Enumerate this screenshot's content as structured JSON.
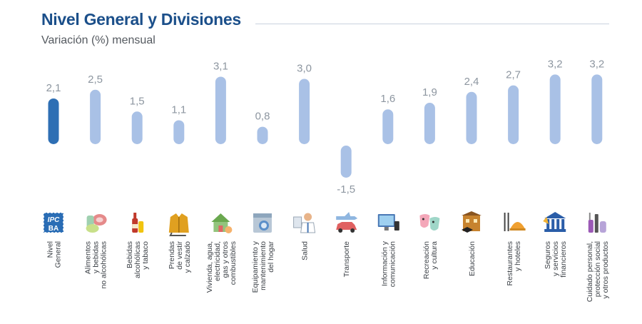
{
  "header": {
    "title": "Nivel General y Divisiones",
    "subtitle": "Variación (%) mensual"
  },
  "colors": {
    "highlight": "#2e6fb4",
    "bar": "#a9c1e6",
    "title": "#1b4f8a"
  },
  "chart_data": {
    "type": "bar",
    "title": "Nivel General y Divisiones",
    "subtitle": "Variación (%) mensual",
    "xlabel": "",
    "ylabel": "",
    "ylim": [
      -2,
      3.5
    ],
    "highlight_index": 0,
    "categories": [
      [
        "Nivel",
        "General"
      ],
      [
        "Alimentos",
        "y bebidas",
        "no alcohólicas"
      ],
      [
        "Bebidas",
        "alcohólicas",
        "y tabaco"
      ],
      [
        "Prendas",
        "de vestir",
        "y calzado"
      ],
      [
        "Vivienda, agua,",
        "electricidad,",
        "gas y otros",
        "combustibles"
      ],
      [
        "Equipamiento y",
        "mantenimiento",
        "del hogar"
      ],
      [
        "Salud"
      ],
      [
        "Transporte"
      ],
      [
        "Información y",
        "comunicación"
      ],
      [
        "Recreación",
        "y cultura"
      ],
      [
        "Educación"
      ],
      [
        "Restaurantes",
        "y hoteles"
      ],
      [
        "Seguros",
        "y servicios",
        "financieros"
      ],
      [
        "Cuidado personal,",
        "protección social",
        "y otros productos"
      ]
    ],
    "values": [
      2.1,
      2.5,
      1.5,
      1.1,
      3.1,
      0.8,
      3.0,
      -1.5,
      1.6,
      1.9,
      2.4,
      2.7,
      3.2,
      3.2
    ],
    "value_labels": [
      "2,1",
      "2,5",
      "1,5",
      "1,1",
      "3,1",
      "0,8",
      "3,0",
      "-1,5",
      "1,6",
      "1,9",
      "2,4",
      "2,7",
      "3,2",
      "3,2"
    ],
    "icons": [
      "ipc-logo-icon",
      "food-icon",
      "wine-bottle-icon",
      "jacket-icon",
      "house-icon",
      "washing-machine-icon",
      "doctor-icon",
      "airplane-car-icon",
      "computer-icon",
      "theater-masks-icon",
      "school-icon",
      "cutlery-icon",
      "bank-icon",
      "personal-care-icon"
    ],
    "icon_text": [
      "IPC",
      "BA"
    ]
  }
}
